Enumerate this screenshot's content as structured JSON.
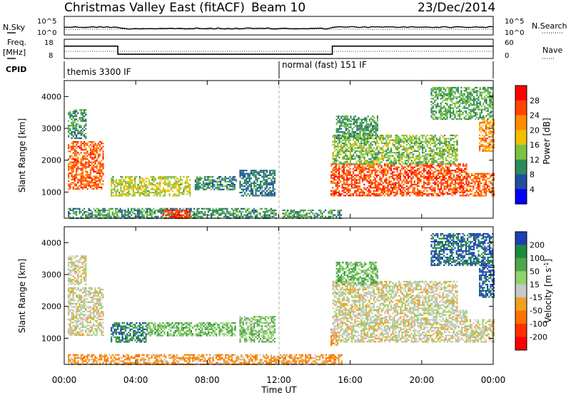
{
  "header": {
    "title": "Christmas Valley East (fitACF)",
    "beam": "Beam 10",
    "date": "23/Dec/2014"
  },
  "sky_panel": {
    "left_label": "N.Sky",
    "left_ticks": [
      "10^5",
      "10^0"
    ],
    "right_ticks": [
      "10^5",
      "10^0"
    ],
    "right_label": "N.Search"
  },
  "freq_panel": {
    "left_label_1": "Freq.",
    "left_label_2": "[MHz]",
    "left_ticks": [
      "18",
      "8"
    ],
    "right_ticks": [
      "60",
      "0"
    ],
    "right_label": "Nave"
  },
  "cpid_panel": {
    "label": "CPID",
    "mode_1": "themis 3300 IF",
    "mode_2": "normal (fast) 151 IF"
  },
  "chart_data": [
    {
      "type": "heatmap",
      "title": "",
      "ylabel": "Slant Range [km]",
      "xlabel": "Time UT",
      "x_ticks": [
        "00:00",
        "04:00",
        "08:00",
        "12:00",
        "16:00",
        "20:00",
        "00:00"
      ],
      "y_ticks": [
        "1000",
        "2000",
        "3000",
        "4000"
      ],
      "xlim_hours": [
        0,
        24
      ],
      "ylim_km": [
        180,
        4500
      ],
      "colorbar": {
        "label": "Power [dB]",
        "ticks": [
          "4",
          "8",
          "12",
          "16",
          "20",
          "24",
          "28"
        ],
        "colors": [
          "#0000ff",
          "#1e4fa0",
          "#2e8b57",
          "#7cc242",
          "#f0c000",
          "#ff8c00",
          "#ff4500",
          "#ff0000"
        ]
      },
      "regions": [
        {
          "t": [
            0.2,
            2.2
          ],
          "r": [
            1100,
            2600
          ],
          "level": 0.82
        },
        {
          "t": [
            0.2,
            1.2
          ],
          "r": [
            2700,
            3600
          ],
          "level": 0.3
        },
        {
          "t": [
            2.6,
            7.0
          ],
          "r": [
            900,
            1500
          ],
          "level": 0.48
        },
        {
          "t": [
            7.3,
            9.6
          ],
          "r": [
            1100,
            1500
          ],
          "level": 0.28
        },
        {
          "t": [
            9.8,
            11.8
          ],
          "r": [
            900,
            1700
          ],
          "level": 0.22
        },
        {
          "t": [
            0.2,
            11.8
          ],
          "r": [
            200,
            500
          ],
          "level": 0.3
        },
        {
          "t": [
            5.5,
            7.0
          ],
          "r": [
            200,
            450
          ],
          "level": 0.92
        },
        {
          "t": [
            12.2,
            15.5
          ],
          "r": [
            200,
            450
          ],
          "level": 0.32
        },
        {
          "t": [
            14.9,
            22.5
          ],
          "r": [
            900,
            1900
          ],
          "level": 0.86
        },
        {
          "t": [
            22.5,
            24.0
          ],
          "r": [
            900,
            1600
          ],
          "level": 0.82
        },
        {
          "t": [
            15.0,
            22.0
          ],
          "r": [
            1900,
            2800
          ],
          "level": 0.42
        },
        {
          "t": [
            15.2,
            17.5
          ],
          "r": [
            2700,
            3400
          ],
          "level": 0.32
        },
        {
          "t": [
            23.2,
            24.0
          ],
          "r": [
            2300,
            3300
          ],
          "level": 0.7
        },
        {
          "t": [
            20.5,
            24.0
          ],
          "r": [
            3300,
            4300
          ],
          "level": 0.35
        }
      ]
    },
    {
      "type": "heatmap",
      "title": "",
      "ylabel": "Slant Range [km]",
      "xlabel": "Time UT",
      "x_ticks": [
        "00:00",
        "04:00",
        "08:00",
        "12:00",
        "16:00",
        "20:00",
        "00:00"
      ],
      "y_ticks": [
        "1000",
        "2000",
        "3000",
        "4000"
      ],
      "xlim_hours": [
        0,
        24
      ],
      "ylim_km": [
        180,
        4500
      ],
      "colorbar": {
        "label": "Velocity [m s^-1]",
        "ticks": [
          "200",
          "100",
          "50",
          "15",
          "-15",
          "-50",
          "-100",
          "-200"
        ],
        "colors": [
          "#1c3fb5",
          "#1e8a3c",
          "#4fa54a",
          "#8fd36a",
          "#c8c8c8",
          "#f0a020",
          "#ff7000",
          "#ff3000",
          "#ff0000"
        ]
      },
      "regions": [
        {
          "t": [
            0.2,
            2.2
          ],
          "r": [
            1100,
            2600
          ],
          "level": 0.5
        },
        {
          "t": [
            0.2,
            1.2
          ],
          "r": [
            2700,
            3600
          ],
          "level": 0.5
        },
        {
          "t": [
            2.6,
            4.6
          ],
          "r": [
            900,
            1500
          ],
          "level": 0.12
        },
        {
          "t": [
            4.6,
            9.6
          ],
          "r": [
            1100,
            1500
          ],
          "level": 0.3
        },
        {
          "t": [
            9.8,
            11.8
          ],
          "r": [
            900,
            1700
          ],
          "level": 0.35
        },
        {
          "t": [
            0.2,
            15.5
          ],
          "r": [
            200,
            500
          ],
          "level": 0.66
        },
        {
          "t": [
            14.9,
            15.3
          ],
          "r": [
            800,
            1300
          ],
          "level": 0.66
        },
        {
          "t": [
            15.0,
            22.5
          ],
          "r": [
            900,
            1900
          ],
          "level": 0.5
        },
        {
          "t": [
            22.5,
            24.0
          ],
          "r": [
            900,
            1600
          ],
          "level": 0.5
        },
        {
          "t": [
            15.0,
            22.0
          ],
          "r": [
            1900,
            2800
          ],
          "level": 0.5
        },
        {
          "t": [
            15.2,
            17.5
          ],
          "r": [
            2700,
            3400
          ],
          "level": 0.3
        },
        {
          "t": [
            23.2,
            24.0
          ],
          "r": [
            2300,
            3300
          ],
          "level": 0.02
        },
        {
          "t": [
            20.5,
            24.0
          ],
          "r": [
            3300,
            4300
          ],
          "level": 0.05
        }
      ]
    }
  ],
  "freq_series": {
    "t": [
      0,
      3.0,
      3.0,
      15.0,
      15.0,
      24.0
    ],
    "mhz": [
      14.4,
      14.4,
      10.2,
      10.2,
      14.4,
      14.4
    ]
  }
}
